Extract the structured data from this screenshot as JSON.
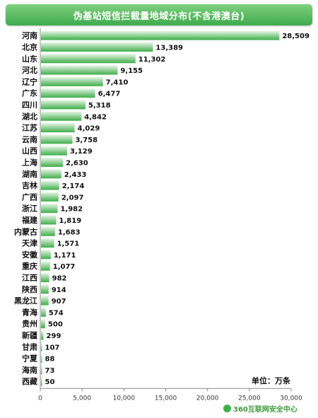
{
  "chart_data": {
    "type": "bar",
    "orientation": "horizontal",
    "title": "伪基站短信拦截量地域分布(不含港澳台)",
    "unit_label": "单位：万条",
    "categories": [
      "河南",
      "北京",
      "山东",
      "河北",
      "辽宁",
      "广东",
      "四川",
      "湖北",
      "江苏",
      "云南",
      "山西",
      "上海",
      "湖南",
      "吉林",
      "广西",
      "浙江",
      "福建",
      "内蒙古",
      "天津",
      "安徽",
      "重庆",
      "江西",
      "陕西",
      "黑龙江",
      "青海",
      "贵州",
      "新疆",
      "甘肃",
      "宁夏",
      "海南",
      "西藏"
    ],
    "values": [
      28509,
      13389,
      11302,
      9155,
      7410,
      6477,
      5318,
      4842,
      4029,
      3758,
      3129,
      2630,
      2433,
      2174,
      2097,
      1982,
      1819,
      1683,
      1571,
      1171,
      1077,
      982,
      914,
      907,
      574,
      500,
      299,
      107,
      88,
      73,
      50
    ],
    "value_labels": [
      "28,509",
      "13,389",
      "11,302",
      "9,155",
      "7,410",
      "6,477",
      "5,318",
      "4,842",
      "4,029",
      "3,758",
      "3,129",
      "2,630",
      "2,433",
      "2,174",
      "2,097",
      "1,982",
      "1,819",
      "1,683",
      "1,571",
      "1,171",
      "1,077",
      "982",
      "914",
      "907",
      "574",
      "500",
      "299",
      "107",
      "88",
      "73",
      "50"
    ],
    "xlim": [
      0,
      30000
    ],
    "x_ticks": [
      0,
      5000,
      10000,
      15000,
      20000,
      25000,
      30000
    ],
    "x_tick_labels": [
      "0",
      "5,000",
      "10,000",
      "15,000",
      "20,000",
      "25,000",
      "30,000"
    ],
    "colors": {
      "bar_top": "#e8f5e8",
      "bar_bottom": "#3fae4a",
      "title_bg": "#4cb85a"
    },
    "grid": false
  },
  "brand": {
    "text": "360互联网安全中心"
  }
}
